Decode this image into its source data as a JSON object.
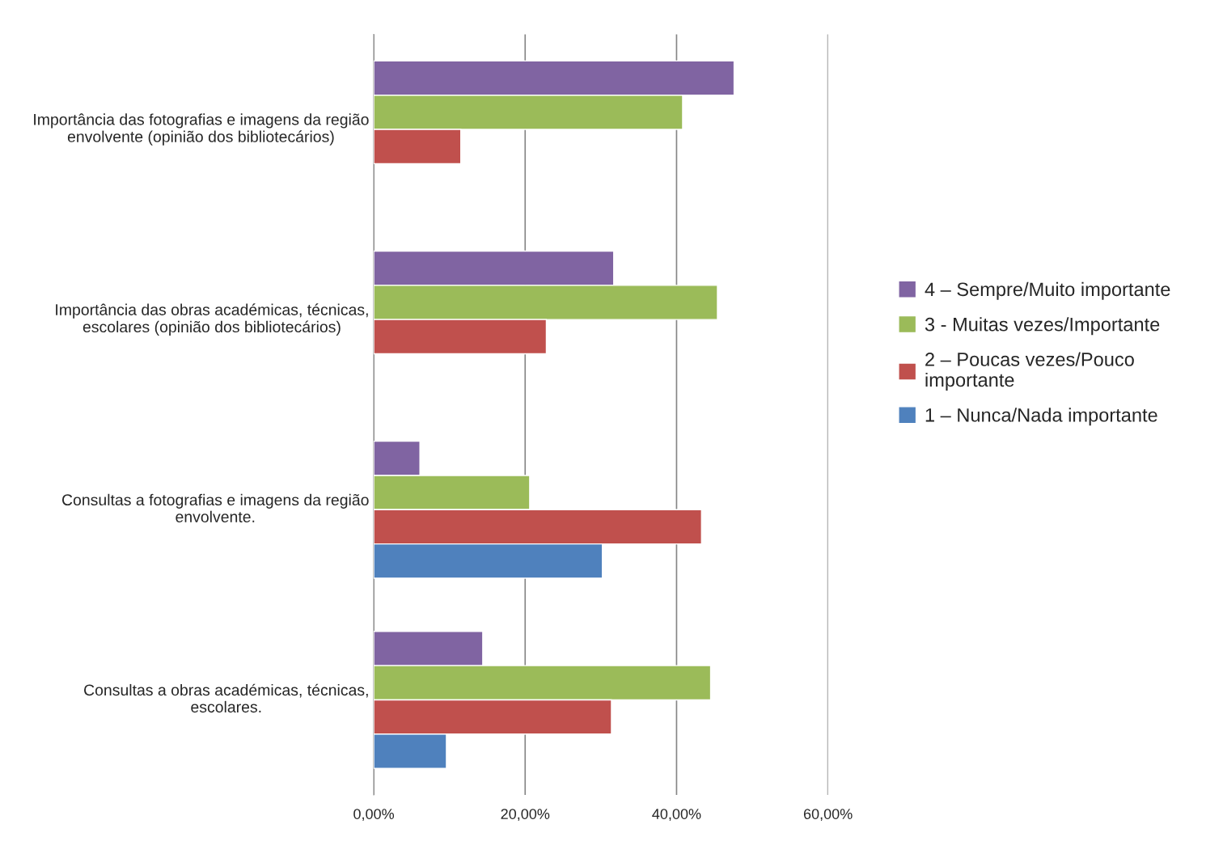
{
  "chart_data": {
    "type": "bar",
    "orientation": "horizontal",
    "categories": [
      "Importância das fotografias e imagens da região envolvente (opinião dos bibliotecários)",
      "Importância das obras académicas, técnicas, escolares (opinião dos bibliotecários)",
      "Consultas a fotografias e imagens da região envolvente.",
      "Consultas a obras académicas, técnicas, escolares."
    ],
    "series": [
      {
        "name": "4 – Sempre/Muito importante",
        "color": "#8064a2",
        "values": [
          47.6,
          31.7,
          6.1,
          14.4
        ]
      },
      {
        "name": "3 - Muitas vezes/Importante",
        "color": "#9bbb59",
        "values": [
          40.8,
          45.4,
          20.6,
          44.5
        ]
      },
      {
        "name": "2 – Poucas vezes/Pouco importante",
        "color": "#c0504d",
        "values": [
          11.5,
          22.8,
          43.3,
          31.4
        ]
      },
      {
        "name": "1 – Nunca/Nada importante",
        "color": "#4f81bd",
        "values": [
          null,
          null,
          30.2,
          9.6
        ]
      }
    ],
    "xlim": [
      0,
      60
    ],
    "xticks": [
      {
        "value": 0,
        "label": "0,00%"
      },
      {
        "value": 20,
        "label": "20,00%"
      },
      {
        "value": 40,
        "label": "40,00%"
      },
      {
        "value": 60,
        "label": "60,00%"
      }
    ],
    "grid": "x",
    "legend": "right"
  }
}
